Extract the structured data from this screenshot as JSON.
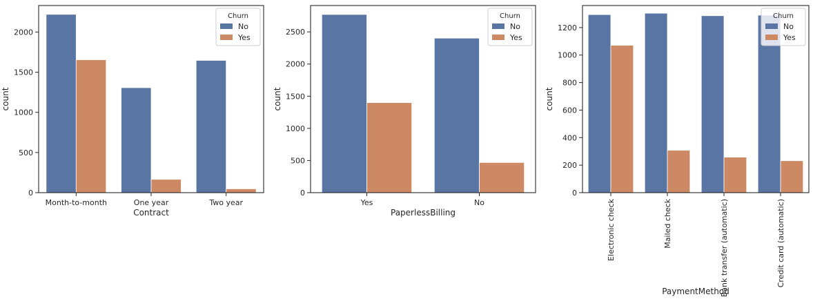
{
  "chart_data": [
    {
      "type": "bar",
      "categories": [
        "Month-to-month",
        "One year",
        "Two year"
      ],
      "series": [
        {
          "name": "No",
          "values": [
            2220,
            1307,
            1647
          ]
        },
        {
          "name": "Yes",
          "values": [
            1655,
            166,
            48
          ]
        }
      ],
      "xlabel": "Contract",
      "ylabel": "count",
      "ylim": [
        0,
        2330
      ],
      "yticks": [
        0,
        500,
        1000,
        1500,
        2000
      ],
      "legend": {
        "title": "Churn",
        "position": "top-right"
      },
      "grid": false,
      "xtick_rotation": 0
    },
    {
      "type": "bar",
      "categories": [
        "Yes",
        "No"
      ],
      "series": [
        {
          "name": "No",
          "values": [
            2771,
            2403
          ]
        },
        {
          "name": "Yes",
          "values": [
            1400,
            469
          ]
        }
      ],
      "xlabel": "PaperlessBilling",
      "ylabel": "count",
      "ylim": [
        0,
        2910
      ],
      "yticks": [
        0,
        500,
        1000,
        1500,
        2000,
        2500
      ],
      "legend": {
        "title": "Churn",
        "position": "top-right"
      },
      "grid": false,
      "xtick_rotation": 0
    },
    {
      "type": "bar",
      "categories": [
        "Electronic check",
        "Mailed check",
        "Bank transfer (automatic)",
        "Credit card (automatic)"
      ],
      "series": [
        {
          "name": "No",
          "values": [
            1294,
            1304,
            1286,
            1290
          ]
        },
        {
          "name": "Yes",
          "values": [
            1071,
            308,
            258,
            232
          ]
        }
      ],
      "xlabel": "PaymentMethod",
      "ylabel": "count",
      "ylim": [
        0,
        1360
      ],
      "yticks": [
        0,
        200,
        400,
        600,
        800,
        1000,
        1200
      ],
      "legend": {
        "title": "Churn",
        "position": "top-right"
      },
      "grid": false,
      "xtick_rotation": 90
    }
  ],
  "colors": {
    "No": "#5975a4",
    "Yes": "#cc8963",
    "axis": "#262626",
    "background": "#ffffff"
  }
}
